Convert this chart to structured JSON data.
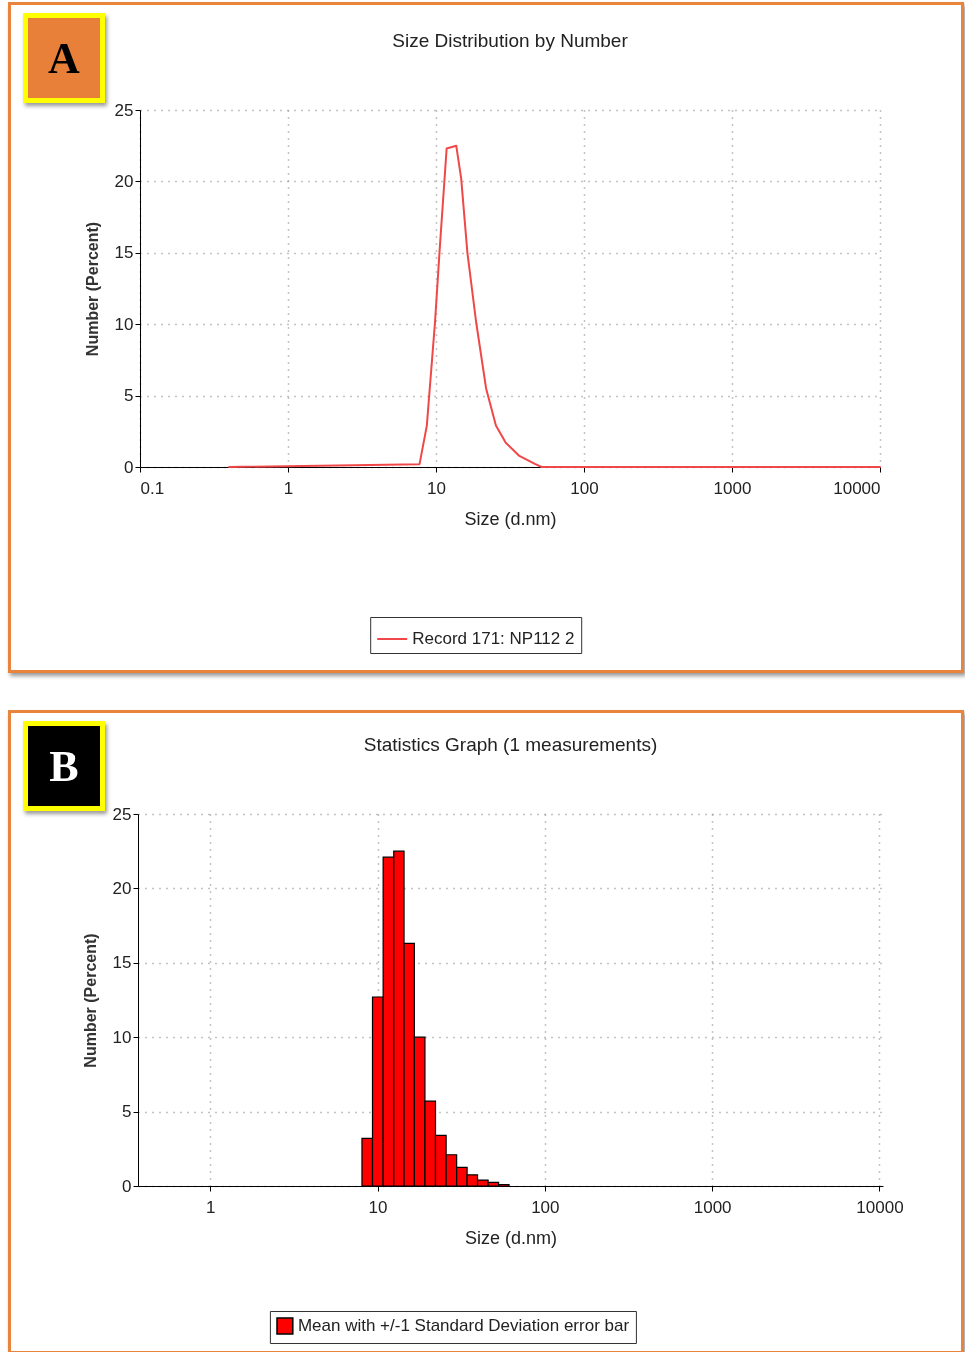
{
  "chart_data": [
    {
      "type": "line",
      "title": "Size Distribution by Number",
      "xlabel": "Size (d.nm)",
      "ylabel": "Number (Percent)",
      "annotations": [
        "A"
      ],
      "log": "x",
      "grid": true,
      "legend": "bottom",
      "x": [
        0.4,
        7.74,
        8.67,
        9.84,
        10.6,
        11.8,
        13.7,
        14.8,
        16.3,
        18.7,
        21.8,
        25.4,
        29.6,
        36.3,
        46.9,
        51.7,
        10000
      ],
      "series": [
        {
          "name": "Record 171: NP112 2",
          "color": "#f04848",
          "values": [
            0,
            0.2,
            2.9,
            10.1,
            15.3,
            22.3,
            22.5,
            20.2,
            15,
            10.1,
            5.5,
            2.9,
            1.7,
            0.8,
            0.2,
            0,
            0
          ]
        }
      ],
      "xlim": [
        0.1,
        10000
      ],
      "xticks": [
        0.1,
        1,
        10,
        100,
        1000,
        10000
      ],
      "ylim": [
        0,
        25
      ],
      "yticks": [
        0,
        5,
        10,
        15,
        20,
        25
      ]
    },
    {
      "type": "histogram",
      "title": "Statistics Graph (1 measurements)",
      "xlabel": "Size (d.nm)",
      "ylabel": "Number (Percent)",
      "annotations": [
        "B"
      ],
      "log": "x",
      "grid": true,
      "legend": "bottom",
      "bins": [
        8.07,
        9.33,
        10.8,
        12.5,
        14.4,
        16.6,
        19.2,
        22.2,
        25.7,
        29.7,
        34.3,
        39.6,
        45.8,
        52.9,
        61.1
      ],
      "series": [
        {
          "name": "Mean with +/-1 Standard Deviation error bar",
          "color": "#ff0000",
          "values": [
            3.2,
            12.7,
            22.1,
            22.5,
            16.3,
            10,
            5.7,
            3.4,
            2.1,
            1.25,
            0.75,
            0.4,
            0.25,
            0.1
          ]
        }
      ],
      "xlim": [
        0.37,
        10500
      ],
      "xticks": [
        1,
        10,
        100,
        1000,
        10000
      ],
      "ylim": [
        0,
        25
      ],
      "yticks": [
        0,
        5,
        10,
        15,
        20,
        25
      ]
    }
  ]
}
